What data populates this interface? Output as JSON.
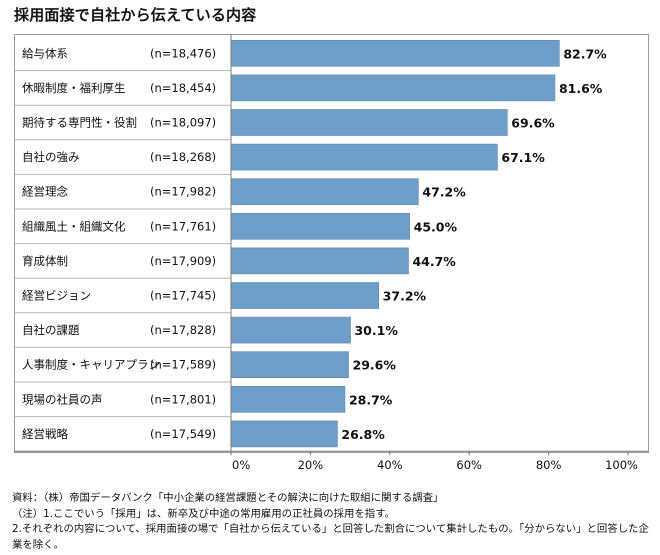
{
  "title": "採用面接で自社から伝えている内容",
  "chart_data": {
    "type": "bar",
    "orientation": "horizontal",
    "categories": [
      "給与体系",
      "休暇制度・福利厚生",
      "期待する専門性・役割",
      "自社の強み",
      "経営理念",
      "組織風土・組織文化",
      "育成体制",
      "経営ビジョン",
      "自社の課題",
      "人事制度・キャリアプラン",
      "現場の社員の声",
      "経営戦略"
    ],
    "sample_sizes": [
      "(n=18,476)",
      "(n=18,454)",
      "(n=18,097)",
      "(n=18,268)",
      "(n=17,982)",
      "(n=17,761)",
      "(n=17,909)",
      "(n=17,745)",
      "(n=17,828)",
      "(n=17,589)",
      "(n=17,801)",
      "(n=17,549)"
    ],
    "values": [
      82.7,
      81.6,
      69.6,
      67.1,
      47.2,
      45.0,
      44.7,
      37.2,
      30.1,
      29.6,
      28.7,
      26.8
    ],
    "value_labels": [
      "82.7%",
      "81.6%",
      "69.6%",
      "67.1%",
      "47.2%",
      "45.0%",
      "44.7%",
      "37.2%",
      "30.1%",
      "29.6%",
      "28.7%",
      "26.8%"
    ],
    "xlim": [
      0,
      100
    ],
    "xticks": [
      "0%",
      "20%",
      "40%",
      "60%",
      "80%",
      "100%"
    ],
    "bar_color": "#6F9FC8",
    "grid": false
  },
  "notes": {
    "source": "資料：（株）帝国データバンク「中小企業の経営課題とその解決に向けた取組に関する調査」",
    "note1": "（注）1.ここでいう「採用」は、新卒及び中途の常用雇用の正社員の採用を指す。",
    "note2": "2.それぞれの内容について、採用面接の場で「自社から伝えている」と回答した割合について集計したもの。「分からない」と回答した企業を除く。"
  }
}
